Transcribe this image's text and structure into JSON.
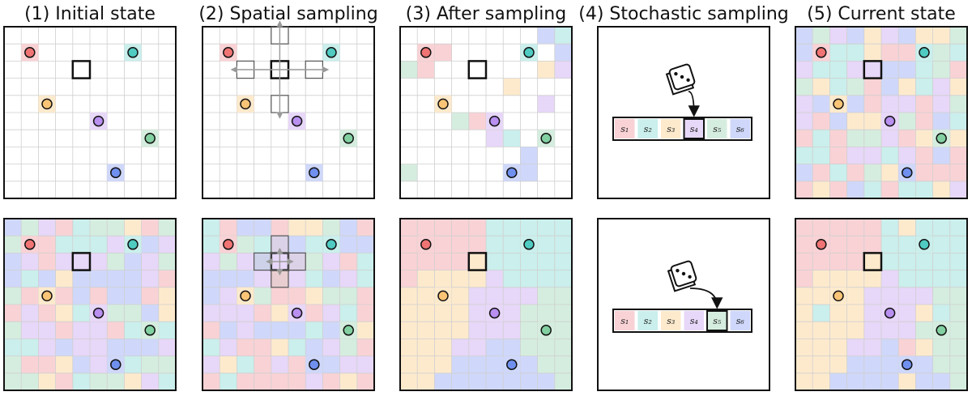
{
  "panels": [
    {
      "title": "(1) Initial state"
    },
    {
      "title": "(2) Spatial sampling"
    },
    {
      "title": "(3) After sampling"
    },
    {
      "title": "(4) Stochastic sampling"
    },
    {
      "title": "(5) Current state"
    }
  ],
  "sampler": {
    "labels": [
      "s₁",
      "s₂",
      "s₃",
      "s₄",
      "s₅",
      "s₆"
    ]
  }
}
